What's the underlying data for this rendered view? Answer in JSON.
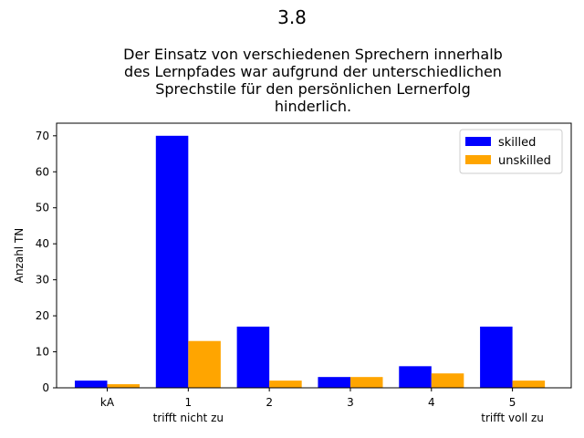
{
  "chart_data": {
    "type": "bar",
    "suptitle": "3.8",
    "title_lines": [
      "Der Einsatz von verschiedenen Sprechern innerhalb",
      "des Lernpfades war aufgrund der unterschiedlichen",
      "Sprechstile für den persönlichen Lernerfolg",
      "hinderlich."
    ],
    "ylabel": "Anzahl TN",
    "categories": [
      "kA",
      "1",
      "2",
      "3",
      "4",
      "5"
    ],
    "category_sublabels": {
      "1": "trifft nicht zu",
      "5": "trifft voll zu"
    },
    "series": [
      {
        "name": "skilled",
        "color": "#0000ff",
        "values": [
          2,
          70,
          17,
          3,
          6,
          17
        ]
      },
      {
        "name": "unskilled",
        "color": "#ffa500",
        "values": [
          1,
          13,
          2,
          3,
          4,
          2
        ]
      }
    ],
    "ylim": [
      0,
      73.5
    ],
    "yticks": [
      0,
      10,
      20,
      30,
      40,
      50,
      60,
      70
    ],
    "grid": false,
    "legend_position": "top-right"
  }
}
